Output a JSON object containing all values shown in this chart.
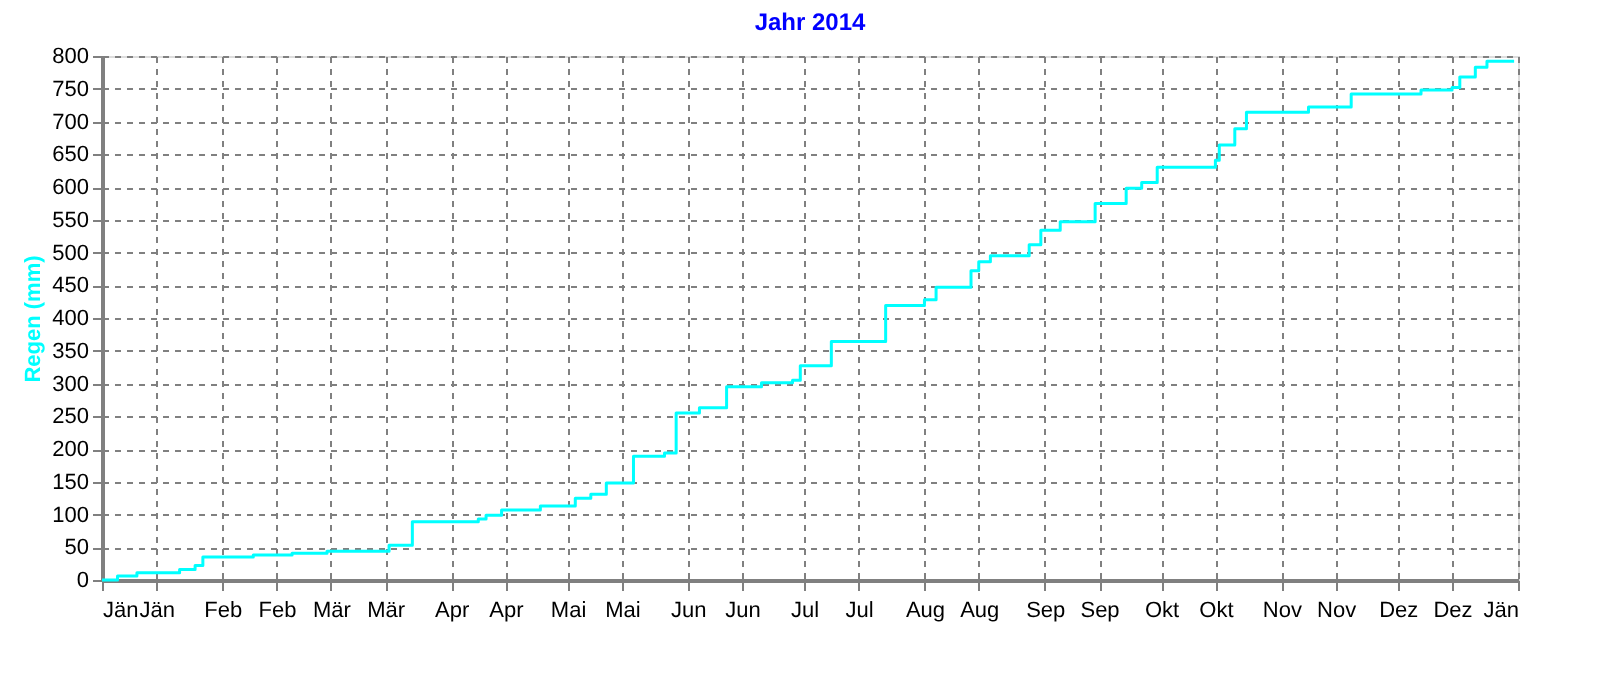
{
  "chart_data": {
    "type": "step",
    "title": "Jahr 2014",
    "ylabel": "Regen (mm)",
    "x": [
      "2014-01-01",
      "2014-01-05",
      "2014-01-10",
      "2014-01-21",
      "2014-01-25",
      "2014-01-27",
      "2014-02-09",
      "2014-02-19",
      "2014-02-28",
      "2014-03-16",
      "2014-03-22",
      "2014-04-08",
      "2014-04-10",
      "2014-04-14",
      "2014-04-24",
      "2014-05-03",
      "2014-05-07",
      "2014-05-11",
      "2014-05-18",
      "2014-05-26",
      "2014-05-29",
      "2014-06-04",
      "2014-06-11",
      "2014-06-20",
      "2014-06-28",
      "2014-06-30",
      "2014-07-08",
      "2014-07-22",
      "2014-08-01",
      "2014-08-04",
      "2014-08-13",
      "2014-08-15",
      "2014-08-18",
      "2014-08-28",
      "2014-08-31",
      "2014-09-05",
      "2014-09-14",
      "2014-09-22",
      "2014-09-26",
      "2014-09-30",
      "2014-10-15",
      "2014-10-16",
      "2014-10-20",
      "2014-10-23",
      "2014-11-08",
      "2014-11-19",
      "2014-12-07",
      "2014-12-15",
      "2014-12-17",
      "2014-12-21",
      "2014-12-24",
      "2014-12-31"
    ],
    "series": [
      {
        "color": "#00ffff",
        "values": [
          0,
          6,
          11,
          16,
          22,
          35,
          38,
          41,
          44,
          53,
          89,
          93,
          99,
          107,
          113,
          125,
          131,
          148,
          189,
          194,
          255,
          263,
          295,
          301,
          305,
          327,
          364,
          419,
          428,
          447,
          472,
          486,
          495,
          512,
          534,
          547,
          575,
          598,
          607,
          630,
          641,
          664,
          689,
          714,
          722,
          742,
          748,
          752,
          768,
          783,
          792,
          792
        ]
      }
    ],
    "xlim": [
      "2014-01-01",
      "2015-01-01"
    ],
    "xticks": [
      {
        "value": "2014-01-01",
        "label": "Jän"
      },
      {
        "value": "2014-01-15",
        "label": "Jän"
      },
      {
        "value": "2014-02-01",
        "label": "Feb"
      },
      {
        "value": "2014-02-15",
        "label": "Feb"
      },
      {
        "value": "2014-03-01",
        "label": "Mär"
      },
      {
        "value": "2014-03-15",
        "label": "Mär"
      },
      {
        "value": "2014-04-01",
        "label": "Apr"
      },
      {
        "value": "2014-04-15",
        "label": "Apr"
      },
      {
        "value": "2014-05-01",
        "label": "Mai"
      },
      {
        "value": "2014-05-15",
        "label": "Mai"
      },
      {
        "value": "2014-06-01",
        "label": "Jun"
      },
      {
        "value": "2014-06-15",
        "label": "Jun"
      },
      {
        "value": "2014-07-01",
        "label": "Jul"
      },
      {
        "value": "2014-07-15",
        "label": "Jul"
      },
      {
        "value": "2014-08-01",
        "label": "Aug"
      },
      {
        "value": "2014-08-15",
        "label": "Aug"
      },
      {
        "value": "2014-09-01",
        "label": "Sep"
      },
      {
        "value": "2014-09-15",
        "label": "Sep"
      },
      {
        "value": "2014-10-01",
        "label": "Okt"
      },
      {
        "value": "2014-10-15",
        "label": "Okt"
      },
      {
        "value": "2014-11-01",
        "label": "Nov"
      },
      {
        "value": "2014-11-15",
        "label": "Nov"
      },
      {
        "value": "2014-12-01",
        "label": "Dez"
      },
      {
        "value": "2014-12-15",
        "label": "Dez"
      },
      {
        "value": "2015-01-01",
        "label": "Jän"
      }
    ],
    "ylim": [
      0,
      800
    ],
    "yticks": [
      0,
      50,
      100,
      150,
      200,
      250,
      300,
      350,
      400,
      450,
      500,
      550,
      600,
      650,
      700,
      750,
      800
    ],
    "grid": true,
    "legend": false,
    "line_style": "solid",
    "marker": "none"
  }
}
